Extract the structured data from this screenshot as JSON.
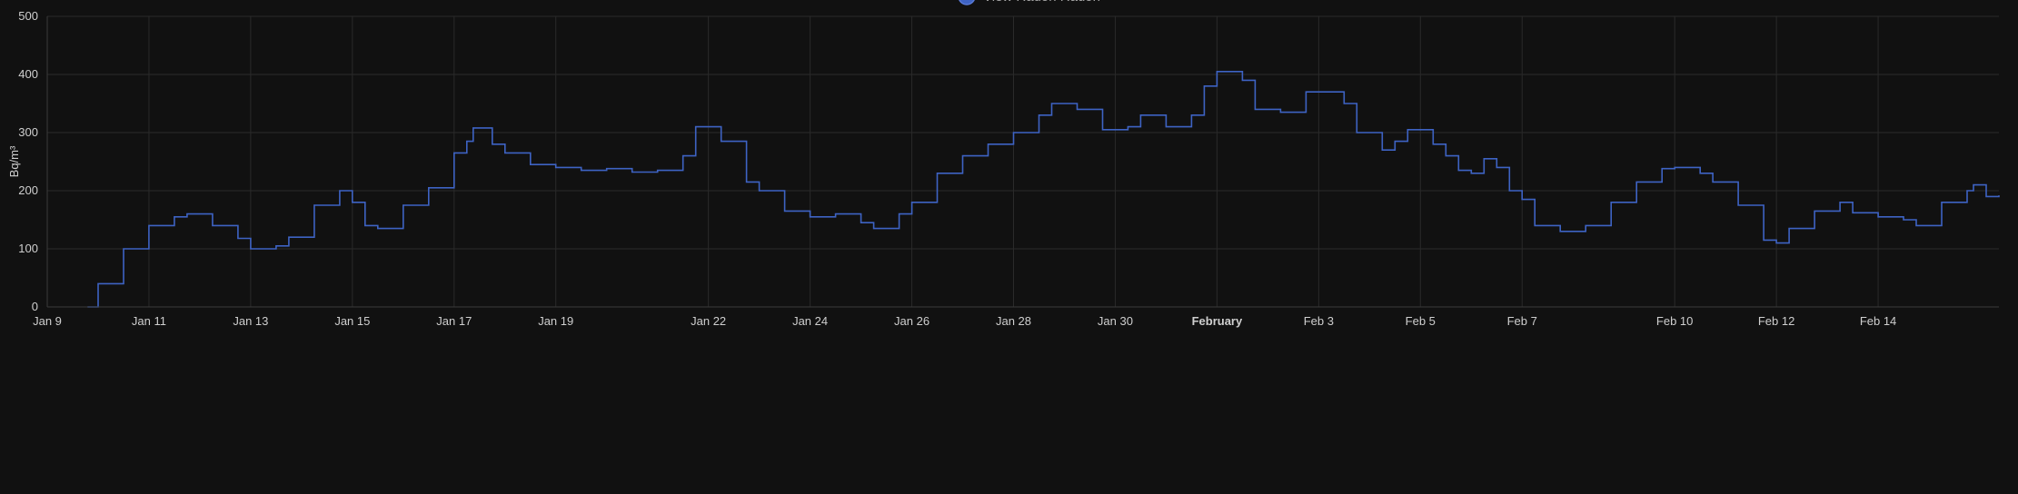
{
  "chart_data": {
    "type": "line",
    "legend": {
      "position": "top-center",
      "entries": [
        {
          "label": "View Radon Radon",
          "color": "#3e63c4"
        }
      ]
    },
    "ylabel": "Bq/m³",
    "ylim": [
      0,
      500
    ],
    "yticks": [
      0,
      100,
      200,
      300,
      400,
      500
    ],
    "xlim": [
      "2024-01-09",
      "2024-02-16T09:00"
    ],
    "xticks": [
      {
        "date": "2024-01-09",
        "label": "Jan 9"
      },
      {
        "date": "2024-01-11",
        "label": "Jan 11"
      },
      {
        "date": "2024-01-13",
        "label": "Jan 13"
      },
      {
        "date": "2024-01-15",
        "label": "Jan 15"
      },
      {
        "date": "2024-01-17",
        "label": "Jan 17"
      },
      {
        "date": "2024-01-19",
        "label": "Jan 19"
      },
      {
        "date": "2024-01-22",
        "label": "Jan 22"
      },
      {
        "date": "2024-01-24",
        "label": "Jan 24"
      },
      {
        "date": "2024-01-26",
        "label": "Jan 26"
      },
      {
        "date": "2024-01-28",
        "label": "Jan 28"
      },
      {
        "date": "2024-01-30",
        "label": "Jan 30"
      },
      {
        "date": "2024-02-01",
        "label": "February",
        "bold": true
      },
      {
        "date": "2024-02-03",
        "label": "Feb 3"
      },
      {
        "date": "2024-02-05",
        "label": "Feb 5"
      },
      {
        "date": "2024-02-07",
        "label": "Feb 7"
      },
      {
        "date": "2024-02-10",
        "label": "Feb 10"
      },
      {
        "date": "2024-02-12",
        "label": "Feb 12"
      },
      {
        "date": "2024-02-14",
        "label": "Feb 14"
      }
    ],
    "grid": true,
    "series": [
      {
        "name": "View Radon Radon",
        "color": "#3e63c4",
        "step": true,
        "points": [
          [
            "2024-01-09T19:00",
            0
          ],
          [
            "2024-01-10T00:00",
            40
          ],
          [
            "2024-01-10T12:00",
            100
          ],
          [
            "2024-01-11T00:00",
            140
          ],
          [
            "2024-01-11T12:00",
            155
          ],
          [
            "2024-01-11T18:00",
            160
          ],
          [
            "2024-01-12T06:00",
            140
          ],
          [
            "2024-01-12T18:00",
            118
          ],
          [
            "2024-01-13T00:00",
            100
          ],
          [
            "2024-01-13T12:00",
            105
          ],
          [
            "2024-01-13T18:00",
            120
          ],
          [
            "2024-01-14T06:00",
            175
          ],
          [
            "2024-01-14T18:00",
            200
          ],
          [
            "2024-01-15T00:00",
            180
          ],
          [
            "2024-01-15T06:00",
            140
          ],
          [
            "2024-01-15T12:00",
            135
          ],
          [
            "2024-01-16T00:00",
            175
          ],
          [
            "2024-01-16T12:00",
            205
          ],
          [
            "2024-01-17T00:00",
            265
          ],
          [
            "2024-01-17T06:00",
            285
          ],
          [
            "2024-01-17T09:00",
            308
          ],
          [
            "2024-01-17T18:00",
            280
          ],
          [
            "2024-01-18T00:00",
            265
          ],
          [
            "2024-01-18T12:00",
            245
          ],
          [
            "2024-01-19T00:00",
            240
          ],
          [
            "2024-01-19T12:00",
            235
          ],
          [
            "2024-01-20T00:00",
            238
          ],
          [
            "2024-01-20T12:00",
            232
          ],
          [
            "2024-01-21T00:00",
            235
          ],
          [
            "2024-01-21T12:00",
            260
          ],
          [
            "2024-01-21T18:00",
            310
          ],
          [
            "2024-01-22T06:00",
            285
          ],
          [
            "2024-01-22T18:00",
            215
          ],
          [
            "2024-01-23T00:00",
            200
          ],
          [
            "2024-01-23T12:00",
            165
          ],
          [
            "2024-01-24T00:00",
            155
          ],
          [
            "2024-01-24T12:00",
            160
          ],
          [
            "2024-01-25T00:00",
            145
          ],
          [
            "2024-01-25T06:00",
            135
          ],
          [
            "2024-01-25T18:00",
            160
          ],
          [
            "2024-01-26T00:00",
            180
          ],
          [
            "2024-01-26T12:00",
            230
          ],
          [
            "2024-01-27T00:00",
            260
          ],
          [
            "2024-01-27T12:00",
            280
          ],
          [
            "2024-01-28T00:00",
            300
          ],
          [
            "2024-01-28T12:00",
            330
          ],
          [
            "2024-01-28T18:00",
            350
          ],
          [
            "2024-01-29T06:00",
            340
          ],
          [
            "2024-01-29T18:00",
            305
          ],
          [
            "2024-01-30T06:00",
            310
          ],
          [
            "2024-01-30T12:00",
            330
          ],
          [
            "2024-01-31T00:00",
            310
          ],
          [
            "2024-01-31T12:00",
            330
          ],
          [
            "2024-01-31T18:00",
            380
          ],
          [
            "2024-02-01T00:00",
            405
          ],
          [
            "2024-02-01T12:00",
            390
          ],
          [
            "2024-02-01T18:00",
            340
          ],
          [
            "2024-02-02T06:00",
            335
          ],
          [
            "2024-02-02T18:00",
            370
          ],
          [
            "2024-02-03T00:00",
            370
          ],
          [
            "2024-02-03T12:00",
            350
          ],
          [
            "2024-02-03T18:00",
            300
          ],
          [
            "2024-02-04T06:00",
            270
          ],
          [
            "2024-02-04T12:00",
            285
          ],
          [
            "2024-02-04T18:00",
            305
          ],
          [
            "2024-02-05T06:00",
            280
          ],
          [
            "2024-02-05T12:00",
            260
          ],
          [
            "2024-02-05T18:00",
            235
          ],
          [
            "2024-02-06T00:00",
            230
          ],
          [
            "2024-02-06T06:00",
            255
          ],
          [
            "2024-02-06T12:00",
            240
          ],
          [
            "2024-02-06T18:00",
            200
          ],
          [
            "2024-02-07T00:00",
            185
          ],
          [
            "2024-02-07T06:00",
            140
          ],
          [
            "2024-02-07T18:00",
            130
          ],
          [
            "2024-02-08T06:00",
            140
          ],
          [
            "2024-02-08T18:00",
            180
          ],
          [
            "2024-02-09T06:00",
            215
          ],
          [
            "2024-02-09T18:00",
            238
          ],
          [
            "2024-02-10T00:00",
            240
          ],
          [
            "2024-02-10T12:00",
            230
          ],
          [
            "2024-02-10T18:00",
            215
          ],
          [
            "2024-02-11T06:00",
            175
          ],
          [
            "2024-02-11T18:00",
            115
          ],
          [
            "2024-02-12T00:00",
            110
          ],
          [
            "2024-02-12T06:00",
            135
          ],
          [
            "2024-02-12T18:00",
            165
          ],
          [
            "2024-02-13T06:00",
            180
          ],
          [
            "2024-02-13T12:00",
            162
          ],
          [
            "2024-02-14T00:00",
            155
          ],
          [
            "2024-02-14T12:00",
            150
          ],
          [
            "2024-02-14T18:00",
            140
          ],
          [
            "2024-02-15T06:00",
            180
          ],
          [
            "2024-02-15T18:00",
            200
          ],
          [
            "2024-02-15T21:00",
            210
          ],
          [
            "2024-02-16T03:00",
            190
          ],
          [
            "2024-02-16T09:00",
            192
          ]
        ]
      }
    ]
  },
  "colors": {
    "background": "#111111",
    "grid": "#2a2a2a",
    "axis_text": "#cfcfcf",
    "series": "#3e63c4"
  }
}
